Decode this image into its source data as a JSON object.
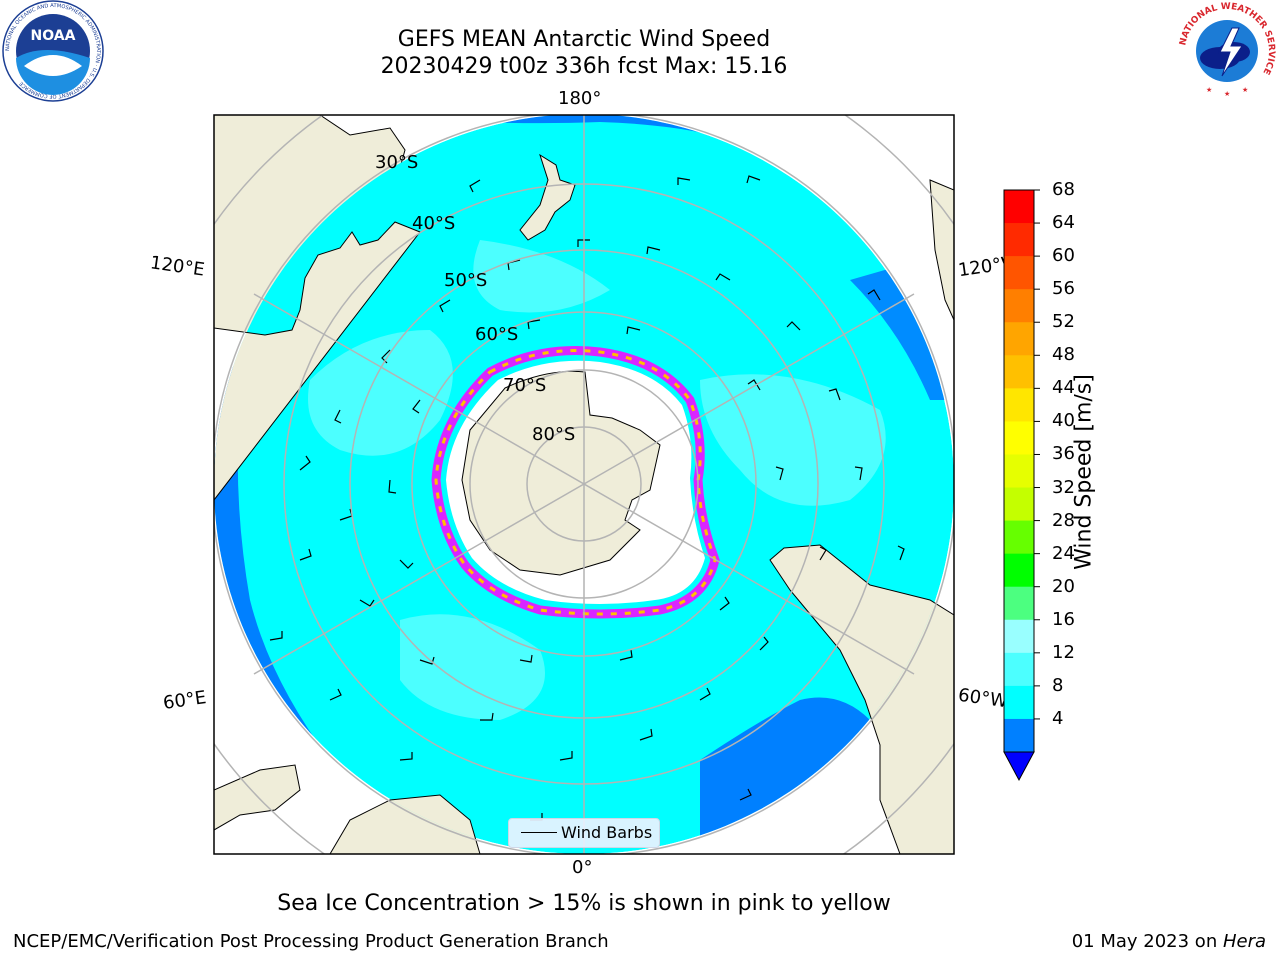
{
  "title": {
    "line1": "GEFS MEAN Antarctic Wind Speed",
    "line2": "20230429 t00z 336h fcst   Max: 15.16"
  },
  "map": {
    "projection": "south-polar-stereographic",
    "longitude_labels": {
      "top": "180°",
      "bottom": "0°",
      "upper_left": "120°E",
      "upper_right": "120°W",
      "lower_left": "60°E",
      "lower_right": "60°W"
    },
    "latitude_labels": [
      "30°S",
      "40°S",
      "50°S",
      "60°S",
      "70°S",
      "80°S"
    ],
    "legend": {
      "label": "Wind Barbs"
    },
    "colors": {
      "land": "#efedd9",
      "ocean_low": "#0080ff",
      "ocean_mid": "#00ffff",
      "ocean_high": "#4cffff",
      "ice_fill": "#ffffff",
      "sea_ice_edge": "#ff00ff",
      "gridline": "#b4b4b4"
    }
  },
  "colorbar": {
    "label": "Wind Speed [m/s]",
    "ticks": [
      "68",
      "64",
      "60",
      "56",
      "52",
      "48",
      "44",
      "40",
      "36",
      "32",
      "28",
      "24",
      "20",
      "16",
      "12",
      "8",
      "4"
    ],
    "colors": [
      "#ff0000",
      "#ff2a00",
      "#ff5500",
      "#ff7f00",
      "#ffa500",
      "#ffc000",
      "#ffe600",
      "#ffff00",
      "#e6ff00",
      "#c4ff00",
      "#66ff00",
      "#00ff00",
      "#4cff80",
      "#99ffff",
      "#4cffff",
      "#00ffff",
      "#0080ff"
    ],
    "extend_color": "#0000ff"
  },
  "note": "Sea Ice Concentration > 15% is shown in pink to yellow",
  "footer": {
    "left": "NCEP/EMC/Verification Post Processing Product Generation Branch",
    "right_prefix": "01 May 2023 on ",
    "right_machine": "Hera"
  },
  "logos": {
    "noaa": {
      "text": "NOAA",
      "ring_text": "NATIONAL OCEANIC AND ATMOSPHERIC ADMINISTRATION · U.S. DEPARTMENT OF COMMERCE"
    },
    "nws": {
      "ring_text": "NATIONAL WEATHER SERVICE"
    }
  }
}
